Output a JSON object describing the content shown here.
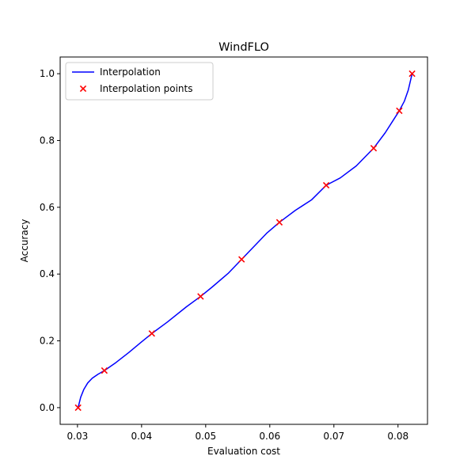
{
  "chart_data": {
    "type": "line",
    "title": "WindFLO",
    "xlabel": "Evaluation cost",
    "ylabel": "Accuracy",
    "xlim": [
      0.0273,
      0.0846
    ],
    "ylim": [
      -0.05,
      1.05
    ],
    "x_ticks": [
      0.03,
      0.04,
      0.05,
      0.06,
      0.07,
      0.08
    ],
    "x_tick_labels": [
      "0.03",
      "0.04",
      "0.05",
      "0.06",
      "0.07",
      "0.08"
    ],
    "y_ticks": [
      0.0,
      0.2,
      0.4,
      0.6,
      0.8,
      1.0
    ],
    "y_tick_labels": [
      "0.0",
      "0.2",
      "0.4",
      "0.6",
      "0.8",
      "1.0"
    ],
    "grid": false,
    "legend": "top-left",
    "series": [
      {
        "name": "Interpolation",
        "kind": "line",
        "color": "#0000ff",
        "x": [
          0.0301,
          0.0305,
          0.031,
          0.0316,
          0.0323,
          0.0332,
          0.0342,
          0.036,
          0.038,
          0.04,
          0.0416,
          0.044,
          0.047,
          0.0492,
          0.051,
          0.0535,
          0.0556,
          0.0575,
          0.0595,
          0.0615,
          0.064,
          0.0665,
          0.0688,
          0.071,
          0.0735,
          0.0762,
          0.078,
          0.0793,
          0.0802,
          0.081,
          0.0816,
          0.0822
        ],
        "y": [
          0.0,
          0.031,
          0.055,
          0.074,
          0.088,
          0.1,
          0.111,
          0.135,
          0.165,
          0.197,
          0.222,
          0.256,
          0.302,
          0.333,
          0.361,
          0.402,
          0.444,
          0.482,
          0.522,
          0.555,
          0.591,
          0.622,
          0.666,
          0.688,
          0.724,
          0.777,
          0.823,
          0.862,
          0.889,
          0.918,
          0.951,
          1.0
        ]
      },
      {
        "name": "Interpolation points",
        "kind": "scatter",
        "marker": "x",
        "color": "#ff0000",
        "x": [
          0.0301,
          0.0342,
          0.0416,
          0.0492,
          0.0556,
          0.0615,
          0.0688,
          0.0762,
          0.0802,
          0.0822
        ],
        "y": [
          0.0,
          0.111,
          0.222,
          0.333,
          0.444,
          0.555,
          0.666,
          0.777,
          0.889,
          1.0
        ]
      }
    ]
  }
}
